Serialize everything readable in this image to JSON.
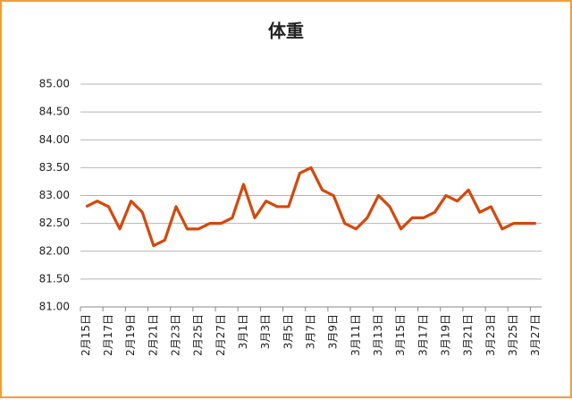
{
  "chart_data": {
    "type": "line",
    "title": "体重",
    "categories": [
      "2月15日",
      null,
      "2月17日",
      null,
      "2月19日",
      null,
      "2月21日",
      null,
      "2月23日",
      null,
      "2月25日",
      null,
      "2月27日",
      null,
      "3月1日",
      null,
      "3月3日",
      null,
      "3月5日",
      null,
      "3月7日",
      null,
      "3月9日",
      null,
      "3月11日",
      null,
      "3月13日",
      null,
      "3月15日",
      null,
      "3月17日",
      null,
      "3月19日",
      null,
      "3月21日",
      null,
      "3月23日",
      null,
      "3月25日",
      null,
      "3月27日"
    ],
    "series": [
      {
        "name": "体重",
        "color": "#d4480c",
        "values": [
          82.8,
          82.9,
          82.8,
          82.4,
          82.9,
          82.7,
          82.1,
          82.2,
          82.8,
          82.4,
          82.4,
          82.5,
          82.5,
          82.6,
          83.2,
          82.6,
          82.9,
          82.8,
          82.8,
          83.4,
          83.5,
          83.1,
          83.0,
          82.5,
          82.4,
          82.6,
          83.0,
          82.8,
          82.4,
          82.6,
          82.6,
          82.7,
          83.0,
          82.9,
          83.1,
          82.7,
          82.8,
          82.4,
          82.5,
          82.5,
          82.5
        ]
      }
    ],
    "ylim": [
      81,
      85
    ],
    "yticks": [
      {
        "value": 81,
        "label": "81.00"
      },
      {
        "value": 81.5,
        "label": "81.50"
      },
      {
        "value": 82,
        "label": "82.00"
      },
      {
        "value": 82.5,
        "label": "82.50"
      },
      {
        "value": 83,
        "label": "83.00"
      },
      {
        "value": 83.5,
        "label": "83.50"
      },
      {
        "value": 84,
        "label": "84.00"
      },
      {
        "value": 84.5,
        "label": "84.50"
      },
      {
        "value": 85,
        "label": "85.00"
      }
    ],
    "grid": true
  }
}
